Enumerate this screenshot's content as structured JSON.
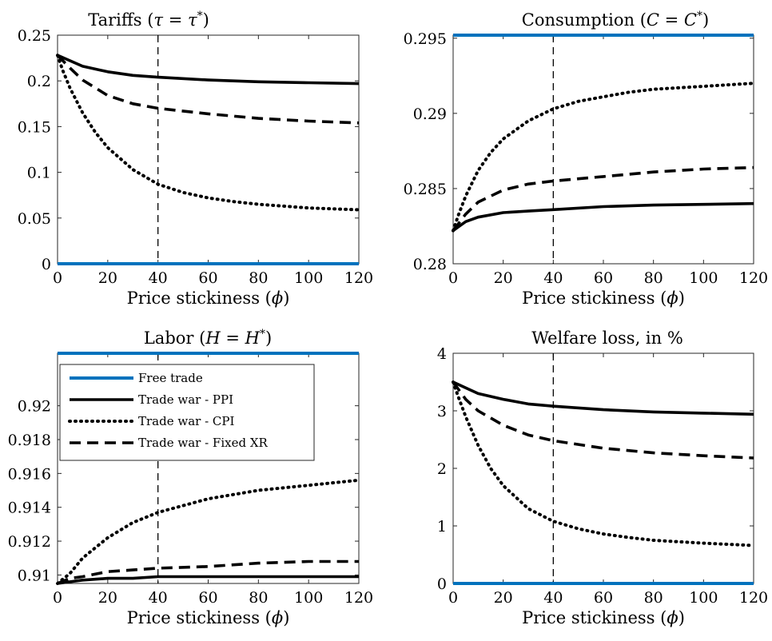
{
  "figure": {
    "legend": {
      "placement": "upper-left of Labor panel",
      "entries": [
        "Free trade",
        "Trade war - PPI",
        "Trade war - CPI",
        "Trade war - Fixed XR"
      ]
    },
    "styles": {
      "Free trade": {
        "color": "#0072BD",
        "dash": "solid",
        "width": 4
      },
      "Trade war - PPI": {
        "color": "#000000",
        "dash": "solid",
        "width": 3.6
      },
      "Trade war - CPI": {
        "color": "#000000",
        "dash": "dotted",
        "width": 4
      },
      "Trade war - Fixed XR": {
        "color": "#000000",
        "dash": "dashed",
        "width": 3.6
      }
    },
    "reference_line_x": 40
  },
  "chart_data": [
    {
      "id": "tariffs",
      "type": "line",
      "title_parts": [
        "Tariffs (",
        "τ",
        " = ",
        "τ",
        "*",
        ")"
      ],
      "xlabel_parts": [
        "Price stickiness (",
        "ϕ",
        ")"
      ],
      "xlim": [
        0,
        120
      ],
      "ylim": [
        0,
        0.25
      ],
      "xticks": [
        0,
        20,
        40,
        60,
        80,
        100,
        120
      ],
      "yticks": [
        0,
        0.05,
        0.1,
        0.15,
        0.2,
        0.25
      ],
      "yticklabels": [
        "0",
        "0.05",
        "0.1",
        "0.15",
        "0.2",
        "0.25"
      ],
      "grid": false,
      "series": [
        {
          "name": "Free trade",
          "x": [
            0,
            120
          ],
          "y": [
            0,
            0
          ]
        },
        {
          "name": "Trade war - PPI",
          "x": [
            0,
            5,
            10,
            20,
            30,
            40,
            60,
            80,
            100,
            120
          ],
          "y": [
            0.228,
            0.222,
            0.216,
            0.21,
            0.206,
            0.204,
            0.201,
            0.199,
            0.198,
            0.197
          ]
        },
        {
          "name": "Trade war - CPI",
          "x": [
            0,
            2,
            5,
            10,
            15,
            20,
            30,
            40,
            50,
            60,
            70,
            80,
            100,
            120
          ],
          "y": [
            0.228,
            0.212,
            0.192,
            0.165,
            0.144,
            0.127,
            0.103,
            0.087,
            0.078,
            0.072,
            0.068,
            0.065,
            0.061,
            0.059
          ]
        },
        {
          "name": "Trade war - Fixed XR",
          "x": [
            0,
            5,
            10,
            20,
            30,
            40,
            60,
            80,
            100,
            120
          ],
          "y": [
            0.228,
            0.214,
            0.201,
            0.184,
            0.175,
            0.17,
            0.164,
            0.159,
            0.156,
            0.154
          ]
        }
      ]
    },
    {
      "id": "consumption",
      "type": "line",
      "title_parts": [
        "Consumption (",
        "C",
        " = ",
        "C",
        "*",
        ")"
      ],
      "xlabel_parts": [
        "Price stickiness (",
        "ϕ",
        ")"
      ],
      "xlim": [
        0,
        120
      ],
      "ylim": [
        0.28,
        0.2952
      ],
      "xticks": [
        0,
        20,
        40,
        60,
        80,
        100,
        120
      ],
      "yticks": [
        0.28,
        0.285,
        0.29,
        0.295
      ],
      "yticklabels": [
        "0.28",
        "0.285",
        "0.29",
        "0.295"
      ],
      "grid": false,
      "series": [
        {
          "name": "Free trade",
          "x": [
            0,
            120
          ],
          "y": [
            0.2952,
            0.2952
          ]
        },
        {
          "name": "Trade war - PPI",
          "x": [
            0,
            5,
            10,
            20,
            30,
            40,
            60,
            80,
            100,
            120
          ],
          "y": [
            0.2822,
            0.2828,
            0.2831,
            0.2834,
            0.2835,
            0.2836,
            0.2838,
            0.2839,
            0.28395,
            0.284
          ]
        },
        {
          "name": "Trade war - CPI",
          "x": [
            0,
            2,
            5,
            10,
            15,
            20,
            30,
            40,
            50,
            60,
            70,
            80,
            100,
            120
          ],
          "y": [
            0.2822,
            0.2832,
            0.2845,
            0.2862,
            0.2874,
            0.2883,
            0.2895,
            0.2903,
            0.2908,
            0.2911,
            0.2914,
            0.2916,
            0.2918,
            0.292
          ]
        },
        {
          "name": "Trade war - Fixed XR",
          "x": [
            0,
            5,
            10,
            20,
            30,
            40,
            60,
            80,
            100,
            120
          ],
          "y": [
            0.2822,
            0.2833,
            0.2841,
            0.2849,
            0.2853,
            0.2855,
            0.2858,
            0.2861,
            0.2863,
            0.2864
          ]
        }
      ]
    },
    {
      "id": "labor",
      "type": "line",
      "title_parts": [
        "Labor (",
        "H",
        " = ",
        "H",
        "*",
        ")"
      ],
      "xlabel_parts": [
        "Price stickiness (",
        "ϕ",
        ")"
      ],
      "xlim": [
        0,
        120
      ],
      "ylim": [
        0.9095,
        0.9231
      ],
      "xticks": [
        0,
        20,
        40,
        60,
        80,
        100,
        120
      ],
      "yticks": [
        0.91,
        0.912,
        0.914,
        0.916,
        0.918,
        0.92
      ],
      "yticklabels": [
        "0.91",
        "0.912",
        "0.914",
        "0.916",
        "0.918",
        "0.92"
      ],
      "grid": false,
      "series": [
        {
          "name": "Free trade",
          "x": [
            0,
            120
          ],
          "y": [
            0.9231,
            0.9231
          ]
        },
        {
          "name": "Trade war - PPI",
          "x": [
            0,
            5,
            10,
            20,
            30,
            40,
            60,
            80,
            100,
            120
          ],
          "y": [
            0.9095,
            0.9096,
            0.9097,
            0.9098,
            0.9098,
            0.9099,
            0.9099,
            0.9099,
            0.9099,
            0.9099
          ]
        },
        {
          "name": "Trade war - CPI",
          "x": [
            0,
            5,
            10,
            20,
            30,
            40,
            50,
            60,
            80,
            100,
            120
          ],
          "y": [
            0.9095,
            0.9101,
            0.911,
            0.9122,
            0.9131,
            0.9137,
            0.9141,
            0.9145,
            0.915,
            0.9153,
            0.9156
          ]
        },
        {
          "name": "Trade war - Fixed XR",
          "x": [
            0,
            5,
            10,
            20,
            30,
            40,
            60,
            80,
            100,
            120
          ],
          "y": [
            0.9095,
            0.9098,
            0.9099,
            0.9102,
            0.9103,
            0.9104,
            0.9105,
            0.9107,
            0.9108,
            0.9108
          ]
        }
      ]
    },
    {
      "id": "welfare",
      "type": "line",
      "title_parts": [
        "Welfare loss, in %"
      ],
      "xlabel_parts": [
        "Price stickiness (",
        "ϕ",
        ")"
      ],
      "xlim": [
        0,
        120
      ],
      "ylim": [
        0,
        4
      ],
      "xticks": [
        0,
        20,
        40,
        60,
        80,
        100,
        120
      ],
      "yticks": [
        0,
        1,
        2,
        3,
        4
      ],
      "yticklabels": [
        "0",
        "1",
        "2",
        "3",
        "4"
      ],
      "grid": false,
      "series": [
        {
          "name": "Free trade",
          "x": [
            0,
            120
          ],
          "y": [
            0,
            0
          ]
        },
        {
          "name": "Trade war - PPI",
          "x": [
            0,
            5,
            10,
            20,
            30,
            40,
            60,
            80,
            100,
            120
          ],
          "y": [
            3.5,
            3.4,
            3.3,
            3.2,
            3.12,
            3.08,
            3.02,
            2.98,
            2.96,
            2.94
          ]
        },
        {
          "name": "Trade war - CPI",
          "x": [
            0,
            2,
            5,
            10,
            15,
            20,
            30,
            40,
            50,
            60,
            70,
            80,
            100,
            120
          ],
          "y": [
            3.5,
            3.25,
            2.9,
            2.4,
            2.0,
            1.7,
            1.3,
            1.08,
            0.95,
            0.86,
            0.8,
            0.75,
            0.7,
            0.66
          ]
        },
        {
          "name": "Trade war - Fixed XR",
          "x": [
            0,
            5,
            10,
            20,
            30,
            40,
            60,
            80,
            100,
            120
          ],
          "y": [
            3.5,
            3.2,
            3.0,
            2.75,
            2.58,
            2.48,
            2.35,
            2.27,
            2.22,
            2.18
          ]
        }
      ]
    }
  ]
}
